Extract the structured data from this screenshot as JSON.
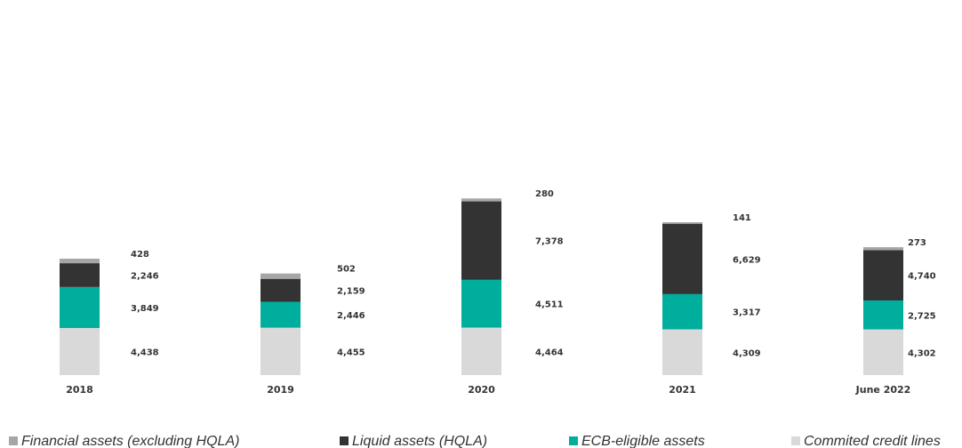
{
  "chart_data": {
    "type": "bar",
    "stacked": true,
    "categories": [
      "2018",
      "2019",
      "2020",
      "2021",
      "June 2022"
    ],
    "series": [
      {
        "name": "Commited credit lines",
        "color": "#d9d9d9",
        "values": [
          4438,
          4455,
          4464,
          4309,
          4302
        ]
      },
      {
        "name": "ECB-eligible assets",
        "color": "#00ae9d",
        "values": [
          3849,
          2446,
          4511,
          3317,
          2725
        ]
      },
      {
        "name": "Liquid assets (HQLA)",
        "color": "#333333",
        "values": [
          2246,
          2159,
          7378,
          6629,
          4740
        ]
      },
      {
        "name": "Financial assets (excluding HQLA)",
        "color": "#a6a6a6",
        "values": [
          428,
          502,
          280,
          141,
          273
        ]
      }
    ],
    "data_labels": [
      [
        "4,438",
        "4,455",
        "4,464",
        "4,309",
        "4,302"
      ],
      [
        "3,849",
        "2,446",
        "4,511",
        "3,317",
        "2,725"
      ],
      [
        "2,246",
        "2,159",
        "7,378",
        "6,629",
        "4,740"
      ],
      [
        "428",
        "502",
        "280",
        "141",
        "273"
      ]
    ],
    "legend": {
      "position": "bottom",
      "order": [
        "Financial assets (excluding HQLA)",
        "Liquid assets (HQLA)",
        "ECB-eligible assets",
        "Commited credit lines"
      ]
    },
    "title": "",
    "xlabel": "",
    "ylabel": "",
    "grid": false
  }
}
